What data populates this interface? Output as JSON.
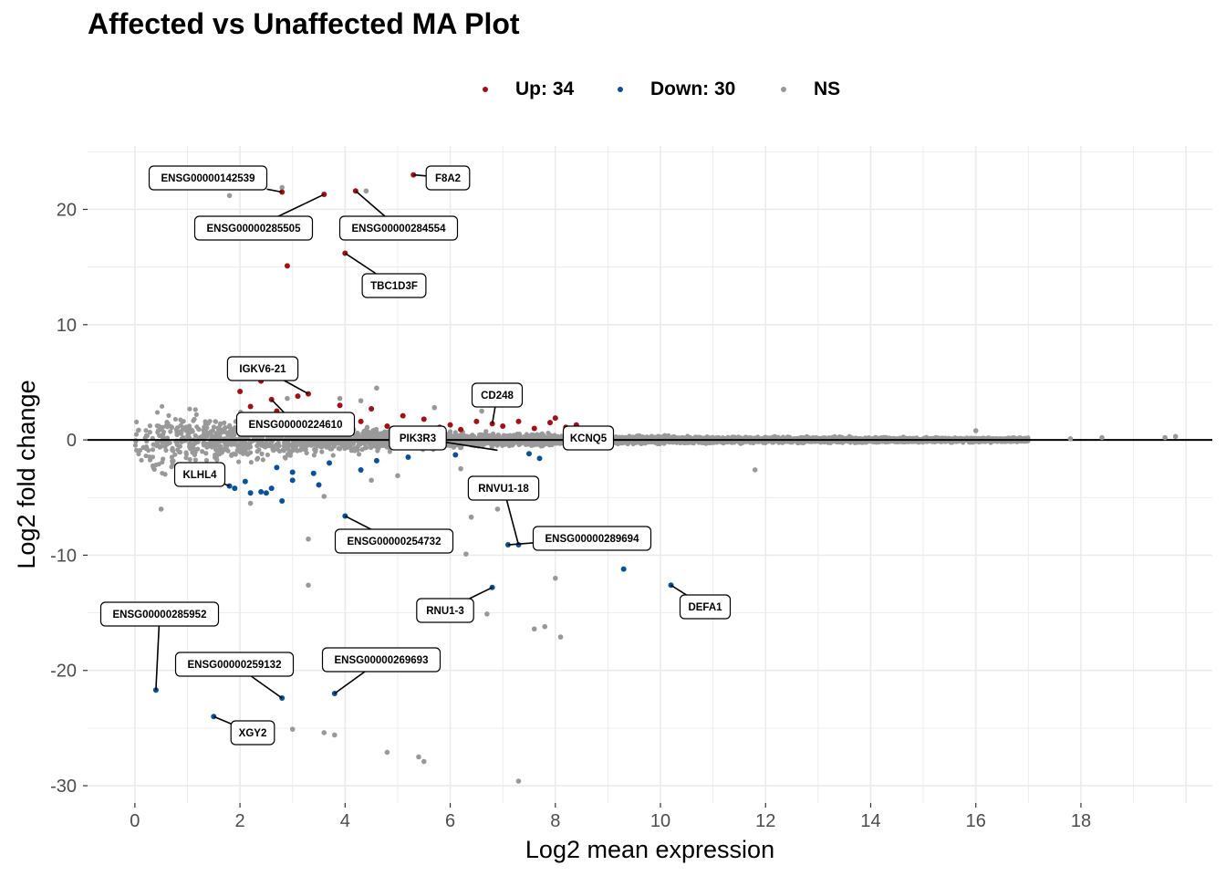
{
  "title": "Affected vs Unaffected MA Plot",
  "legend": {
    "items": [
      {
        "label": "Up: 34",
        "color": "#a50f15"
      },
      {
        "label": "Down: 30",
        "color": "#08519c"
      },
      {
        "label": "NS",
        "color": "#999999"
      }
    ]
  },
  "chart_data": {
    "type": "scatter",
    "title": "Affected vs Unaffected MA Plot",
    "xlabel": "Log2 mean expression",
    "ylabel": "Log2 fold change",
    "xlim": [
      -0.9,
      20.5
    ],
    "ylim": [
      -31.5,
      25.5
    ],
    "xticks": [
      0,
      2,
      4,
      6,
      8,
      10,
      12,
      14,
      16,
      18
    ],
    "yticks": [
      -30,
      -20,
      -10,
      0,
      10,
      20
    ],
    "grid": true,
    "hline": 0,
    "colors": {
      "up": "#a50f15",
      "down": "#08519c",
      "ns": "#999999"
    },
    "series": [
      {
        "name": "Up: 34",
        "points": [
          [
            2.8,
            21.5
          ],
          [
            3.6,
            21.3
          ],
          [
            4.2,
            21.6
          ],
          [
            5.3,
            23.0
          ],
          [
            2.9,
            15.1
          ],
          [
            4.0,
            16.2
          ],
          [
            3.3,
            4.0
          ],
          [
            2.4,
            5.1
          ],
          [
            2.0,
            4.2
          ],
          [
            4.5,
            2.7
          ],
          [
            5.5,
            1.8
          ],
          [
            6.5,
            1.6
          ],
          [
            6.8,
            1.4
          ],
          [
            7.3,
            1.6
          ],
          [
            8.0,
            1.9
          ],
          [
            8.4,
            1.3
          ],
          [
            5.0,
            1.0
          ],
          [
            3.5,
            1.5
          ],
          [
            2.6,
            3.5
          ],
          [
            3.1,
            3.8
          ],
          [
            4.8,
            1.2
          ],
          [
            5.8,
            1.1
          ],
          [
            6.2,
            0.9
          ],
          [
            7.6,
            1.0
          ],
          [
            3.8,
            2.2
          ],
          [
            2.2,
            2.9
          ],
          [
            4.3,
            1.6
          ],
          [
            5.1,
            2.1
          ],
          [
            6.0,
            1.3
          ],
          [
            7.0,
            1.2
          ],
          [
            2.7,
            2.5
          ],
          [
            3.9,
            3.0
          ],
          [
            8.2,
            1.1
          ],
          [
            7.9,
            1.5
          ]
        ]
      },
      {
        "name": "Down: 30",
        "points": [
          [
            0.4,
            -21.7
          ],
          [
            1.5,
            -24.0
          ],
          [
            2.8,
            -22.4
          ],
          [
            3.8,
            -22.0
          ],
          [
            6.8,
            -12.8
          ],
          [
            7.1,
            -9.1
          ],
          [
            7.3,
            -9.1
          ],
          [
            9.3,
            -11.2
          ],
          [
            10.2,
            -12.6
          ],
          [
            4.0,
            -6.6
          ],
          [
            4.3,
            -2.6
          ],
          [
            3.5,
            -3.9
          ],
          [
            2.5,
            -4.6
          ],
          [
            2.8,
            -5.3
          ],
          [
            3.0,
            -3.5
          ],
          [
            1.8,
            -4.0
          ],
          [
            2.2,
            -4.6
          ],
          [
            7.7,
            -1.6
          ],
          [
            3.0,
            -2.8
          ],
          [
            2.4,
            -4.5
          ],
          [
            1.9,
            -4.2
          ],
          [
            2.6,
            -4.2
          ],
          [
            3.4,
            -2.9
          ],
          [
            2.7,
            -2.4
          ],
          [
            2.1,
            -3.6
          ],
          [
            3.7,
            -2.0
          ],
          [
            4.6,
            -1.8
          ],
          [
            5.2,
            -1.5
          ],
          [
            6.1,
            -1.3
          ],
          [
            7.5,
            -1.2
          ]
        ]
      },
      {
        "name": "NS",
        "points": [
          [
            2.8,
            21.9
          ],
          [
            1.8,
            21.2
          ],
          [
            4.4,
            21.6
          ],
          [
            6.4,
            -6.7
          ],
          [
            6.3,
            -9.9
          ],
          [
            8.0,
            -12.0
          ],
          [
            6.7,
            -15.1
          ],
          [
            7.6,
            -16.4
          ],
          [
            7.8,
            -16.2
          ],
          [
            8.1,
            -17.1
          ],
          [
            3.3,
            -12.6
          ],
          [
            5.9,
            -14.8
          ],
          [
            3.0,
            -25.1
          ],
          [
            3.6,
            -25.4
          ],
          [
            3.8,
            -25.6
          ],
          [
            4.8,
            -27.1
          ],
          [
            5.4,
            -27.5
          ],
          [
            5.5,
            -27.9
          ],
          [
            7.3,
            -29.6
          ],
          [
            3.3,
            -8.6
          ],
          [
            6.9,
            -6.0
          ],
          [
            11.8,
            -2.6
          ],
          [
            0.5,
            -6.0
          ],
          [
            1.3,
            -3.2
          ],
          [
            16.0,
            0.8
          ],
          [
            17.8,
            0.1
          ],
          [
            18.4,
            0.2
          ],
          [
            19.6,
            0.2
          ],
          [
            19.8,
            0.3
          ],
          [
            4.6,
            4.5
          ],
          [
            4.3,
            3.4
          ],
          [
            2.9,
            3.6
          ],
          [
            3.9,
            3.6
          ],
          [
            5.7,
            2.8
          ],
          [
            6.6,
            2.5
          ],
          [
            6.2,
            -2.5
          ],
          [
            5.0,
            -3.1
          ],
          [
            3.6,
            -4.9
          ],
          [
            2.2,
            -5.5
          ],
          [
            4.5,
            -3.5
          ]
        ]
      }
    ],
    "labels": [
      {
        "text": "ENSG00000142539",
        "point": [
          2.8,
          21.5
        ]
      },
      {
        "text": "F8A2",
        "point": [
          5.3,
          23.0
        ]
      },
      {
        "text": "ENSG00000285505",
        "point": [
          3.6,
          21.3
        ]
      },
      {
        "text": "ENSG00000284554",
        "point": [
          4.2,
          21.6
        ]
      },
      {
        "text": "TBC1D3F",
        "point": [
          4.0,
          16.2
        ]
      },
      {
        "text": "IGKV6-21",
        "point": [
          3.3,
          4.0
        ]
      },
      {
        "text": "CD248",
        "point": [
          6.8,
          1.4
        ]
      },
      {
        "text": "ENSG00000224610",
        "point": [
          2.6,
          3.5
        ]
      },
      {
        "text": "PIK3R3",
        "point": [
          6.9,
          -0.9
        ]
      },
      {
        "text": "KCNQ5",
        "point": [
          8.4,
          1.3
        ]
      },
      {
        "text": "KLHL4",
        "point": [
          1.8,
          -4.0
        ]
      },
      {
        "text": "RNVU1-18",
        "point": [
          7.3,
          -9.1
        ]
      },
      {
        "text": "ENSG00000289694",
        "point": [
          7.1,
          -9.1
        ]
      },
      {
        "text": "ENSG00000254732",
        "point": [
          4.0,
          -6.6
        ]
      },
      {
        "text": "RNU1-3",
        "point": [
          6.8,
          -12.8
        ]
      },
      {
        "text": "DEFA1",
        "point": [
          10.2,
          -12.6
        ]
      },
      {
        "text": "ENSG00000285952",
        "point": [
          0.4,
          -21.7
        ]
      },
      {
        "text": "ENSG00000259132",
        "point": [
          2.8,
          -22.4
        ]
      },
      {
        "text": "ENSG00000269693",
        "point": [
          3.8,
          -22.0
        ]
      },
      {
        "text": "XGY2",
        "point": [
          1.5,
          -24.0
        ]
      }
    ]
  }
}
